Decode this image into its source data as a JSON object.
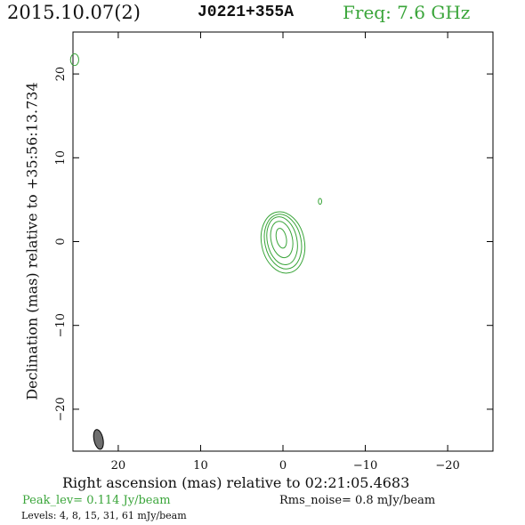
{
  "header": {
    "date": "2015.10.07(2)",
    "source": "J0221+355A",
    "freq": "Freq: 7.6 GHz"
  },
  "footer": {
    "peak": "Peak_lev=  0.114 Jy/beam",
    "rms": "Rms_noise=  0.8 mJy/beam",
    "levels": "Levels:   4,   8,  15,  31,  61 mJy/beam"
  },
  "colors": {
    "contour": "#3aa53a",
    "beam": "#6e6e6e",
    "axes": "#000000"
  },
  "chart_data": {
    "type": "contour",
    "title": "J0221+355A",
    "xlabel": "Right ascension (mas) relative to 02:21:05.4683",
    "ylabel": "Declination (mas) relative to +35:56:13.734",
    "xlim": [
      25.5,
      -25.5
    ],
    "ylim": [
      -25,
      25
    ],
    "xticks": [
      20,
      10,
      0,
      -10,
      -20
    ],
    "xtick_labels": [
      "20",
      "10",
      "0",
      "−10",
      "−20"
    ],
    "yticks": [
      20,
      10,
      0,
      -10,
      -20
    ],
    "ytick_labels": [
      "20",
      "10",
      "0",
      "−10",
      "−20"
    ],
    "x_reverse": true,
    "levels_mJy": [
      4,
      8,
      15,
      31,
      61
    ],
    "peak_Jy_per_beam": 0.114,
    "rms_mJy_per_beam": 0.8,
    "contours": [
      {
        "level": 4,
        "cx": 0.0,
        "cy": -0.1,
        "rx": 2.6,
        "ry": 3.7,
        "angle_deg": -12
      },
      {
        "level": 8,
        "cx": 0.0,
        "cy": 0.0,
        "rx": 2.2,
        "ry": 3.3,
        "angle_deg": -12
      },
      {
        "level": 15,
        "cx": 0.1,
        "cy": 0.1,
        "rx": 1.8,
        "ry": 2.9,
        "angle_deg": -12
      },
      {
        "level": 31,
        "cx": 0.15,
        "cy": 0.25,
        "rx": 1.3,
        "ry": 2.2,
        "angle_deg": -12
      },
      {
        "level": 61,
        "cx": 0.2,
        "cy": 0.4,
        "rx": 0.6,
        "ry": 1.2,
        "angle_deg": -12
      },
      {
        "level": 4,
        "cx": -4.5,
        "cy": 4.8,
        "rx": 0.2,
        "ry": 0.35,
        "angle_deg": 0
      },
      {
        "level": 4,
        "cx": 25.3,
        "cy": 21.7,
        "rx": 0.5,
        "ry": 0.7,
        "angle_deg": 0
      }
    ],
    "beam": {
      "cx": 22.4,
      "cy": -23.6,
      "rx": 0.55,
      "ry": 1.2,
      "angle_deg": -12
    }
  }
}
